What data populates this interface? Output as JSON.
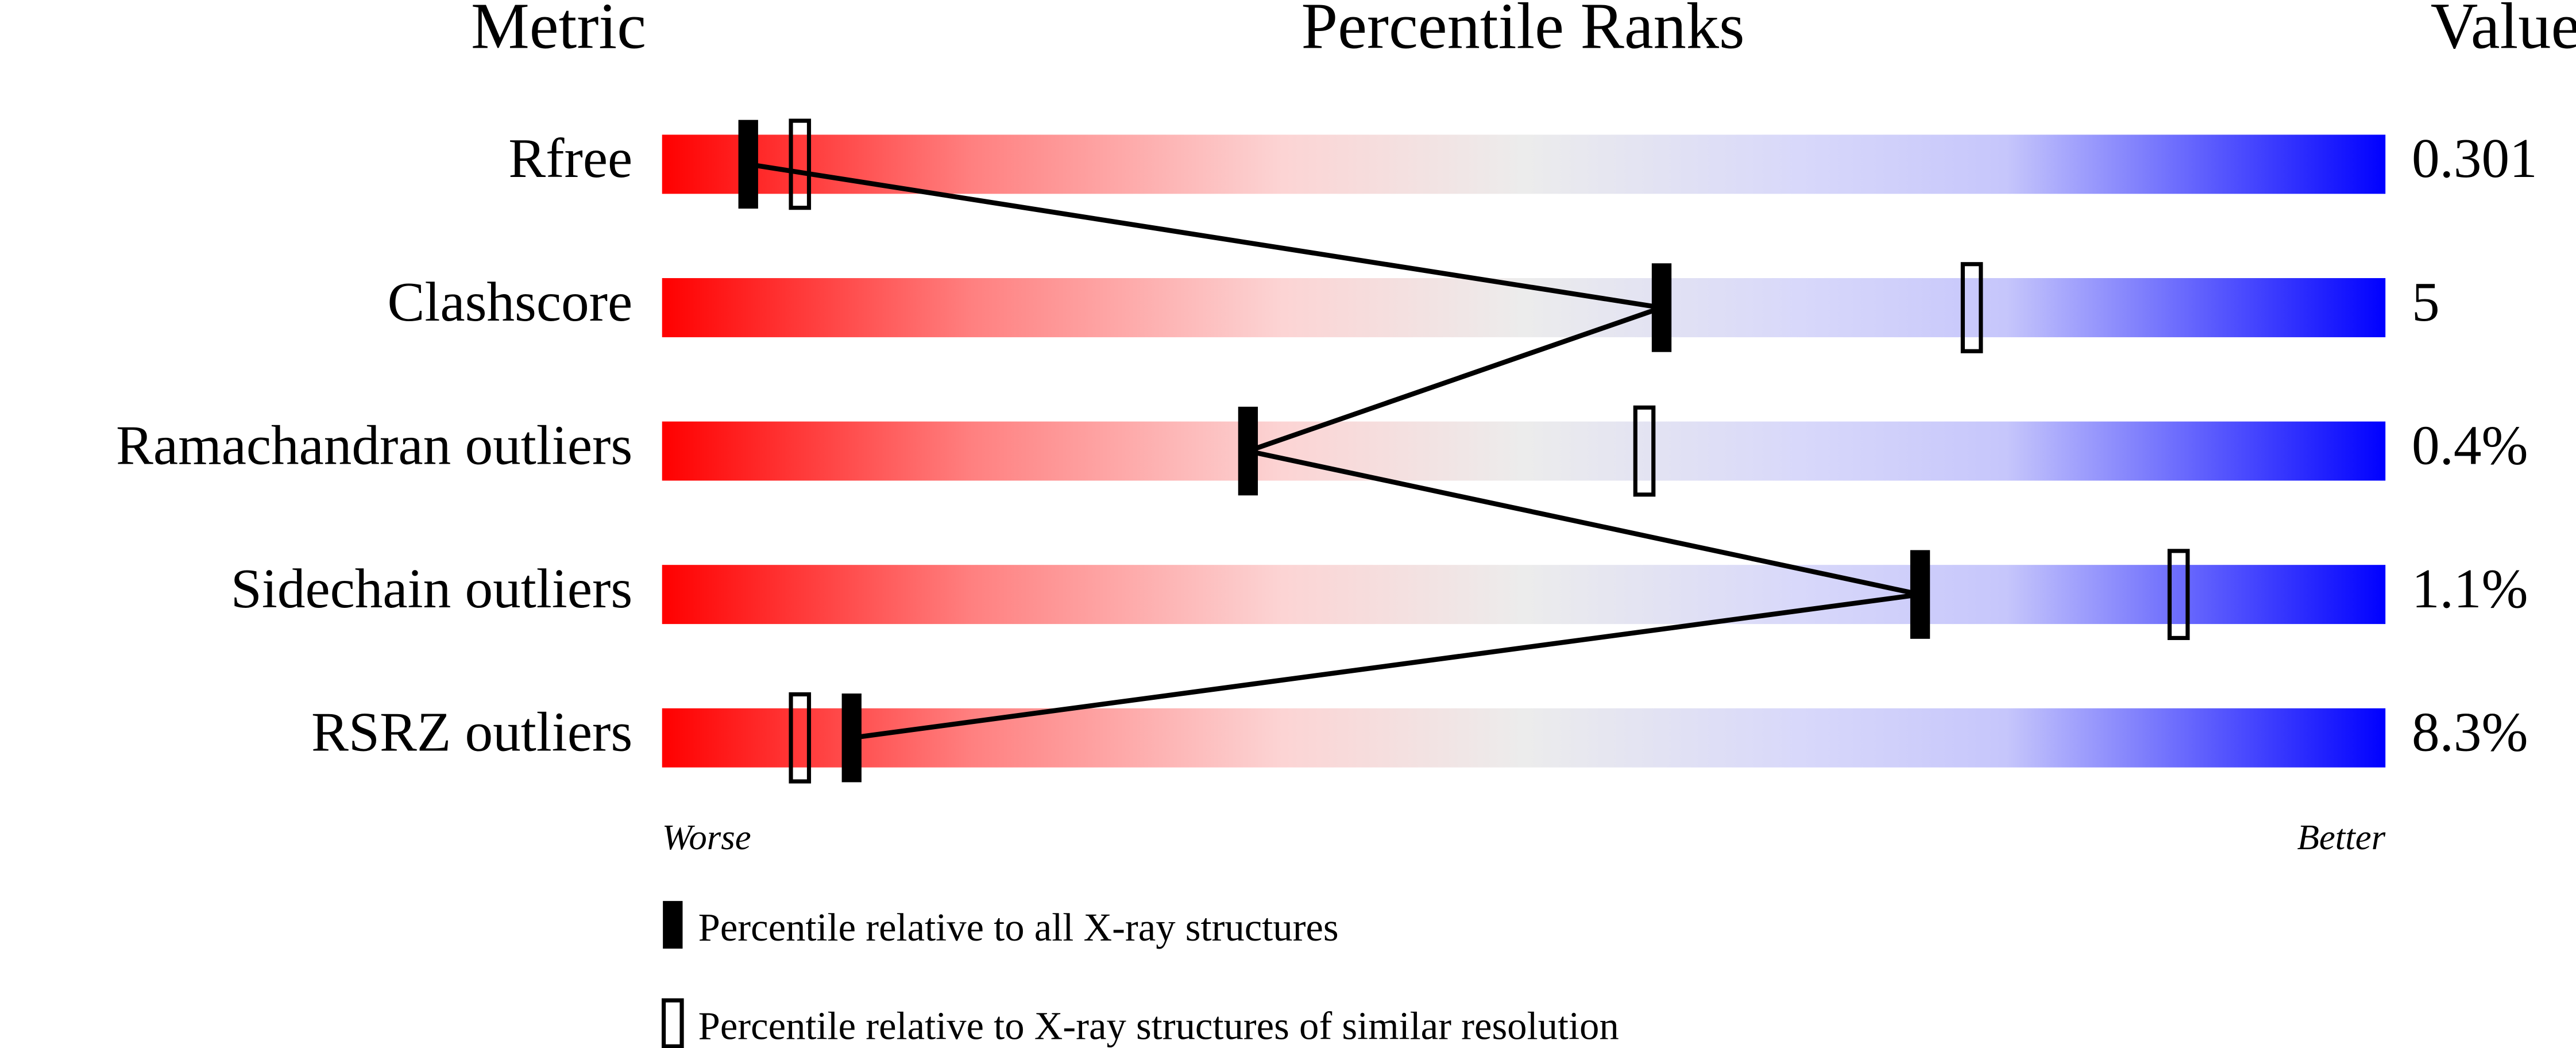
{
  "chart_data": {
    "type": "slider",
    "headers": [
      "Metric",
      "Percentile Ranks",
      "Value"
    ],
    "categories": [
      "Rfree",
      "Clashscore",
      "Ramachandran outliers",
      "Sidechain outliers",
      "RSRZ outliers"
    ],
    "metric_values": [
      "0.301",
      "5",
      "0.4%",
      "1.1%",
      "8.3%"
    ],
    "series": [
      {
        "name": "Percentile relative to all X-ray structures",
        "color": "#000000",
        "filled": true,
        "values": [
          5,
          58,
          34,
          73,
          11
        ]
      },
      {
        "name": "Percentile relative to X-ray structures of similar resolution",
        "color": "#000000",
        "filled": false,
        "values": [
          8,
          76,
          57,
          88,
          8
        ]
      }
    ],
    "xlim": [
      0,
      100
    ],
    "axis_ends": [
      "Worse",
      "Better"
    ]
  }
}
